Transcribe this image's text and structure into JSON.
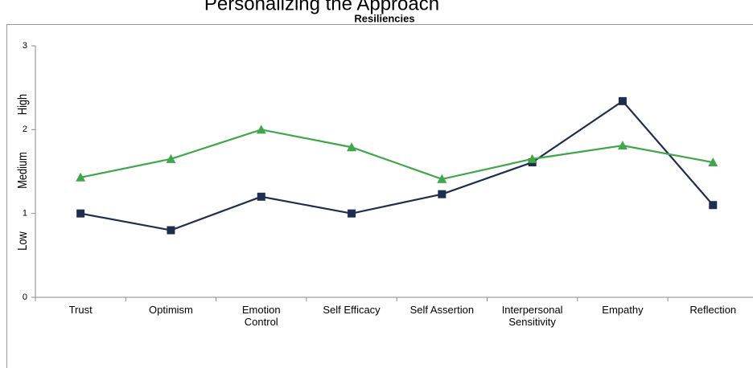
{
  "page_title": "Personalizing the Approach",
  "chart_data": {
    "type": "line",
    "title": "Resiliencies",
    "categories": [
      "Trust",
      "Optimism",
      "Emotion\nControl",
      "Self Efficacy",
      "Self Assertion",
      "Interpersonal\nSensitivity",
      "Empathy",
      "Reflection"
    ],
    "series": [
      {
        "color": "#1f2d4e",
        "marker": "square",
        "values": [
          1.0,
          0.8,
          1.2,
          1.0,
          1.23,
          1.61,
          2.34,
          1.1
        ]
      },
      {
        "color": "#3fa64a",
        "marker": "triangle",
        "values": [
          1.43,
          1.65,
          2.0,
          1.79,
          1.41,
          1.65,
          1.81,
          1.61
        ]
      }
    ],
    "ylim": [
      0,
      3
    ],
    "yticks": [
      0,
      1,
      2,
      3
    ],
    "y_band_labels": [
      "Low",
      "Medium",
      "High"
    ],
    "grid": false
  }
}
